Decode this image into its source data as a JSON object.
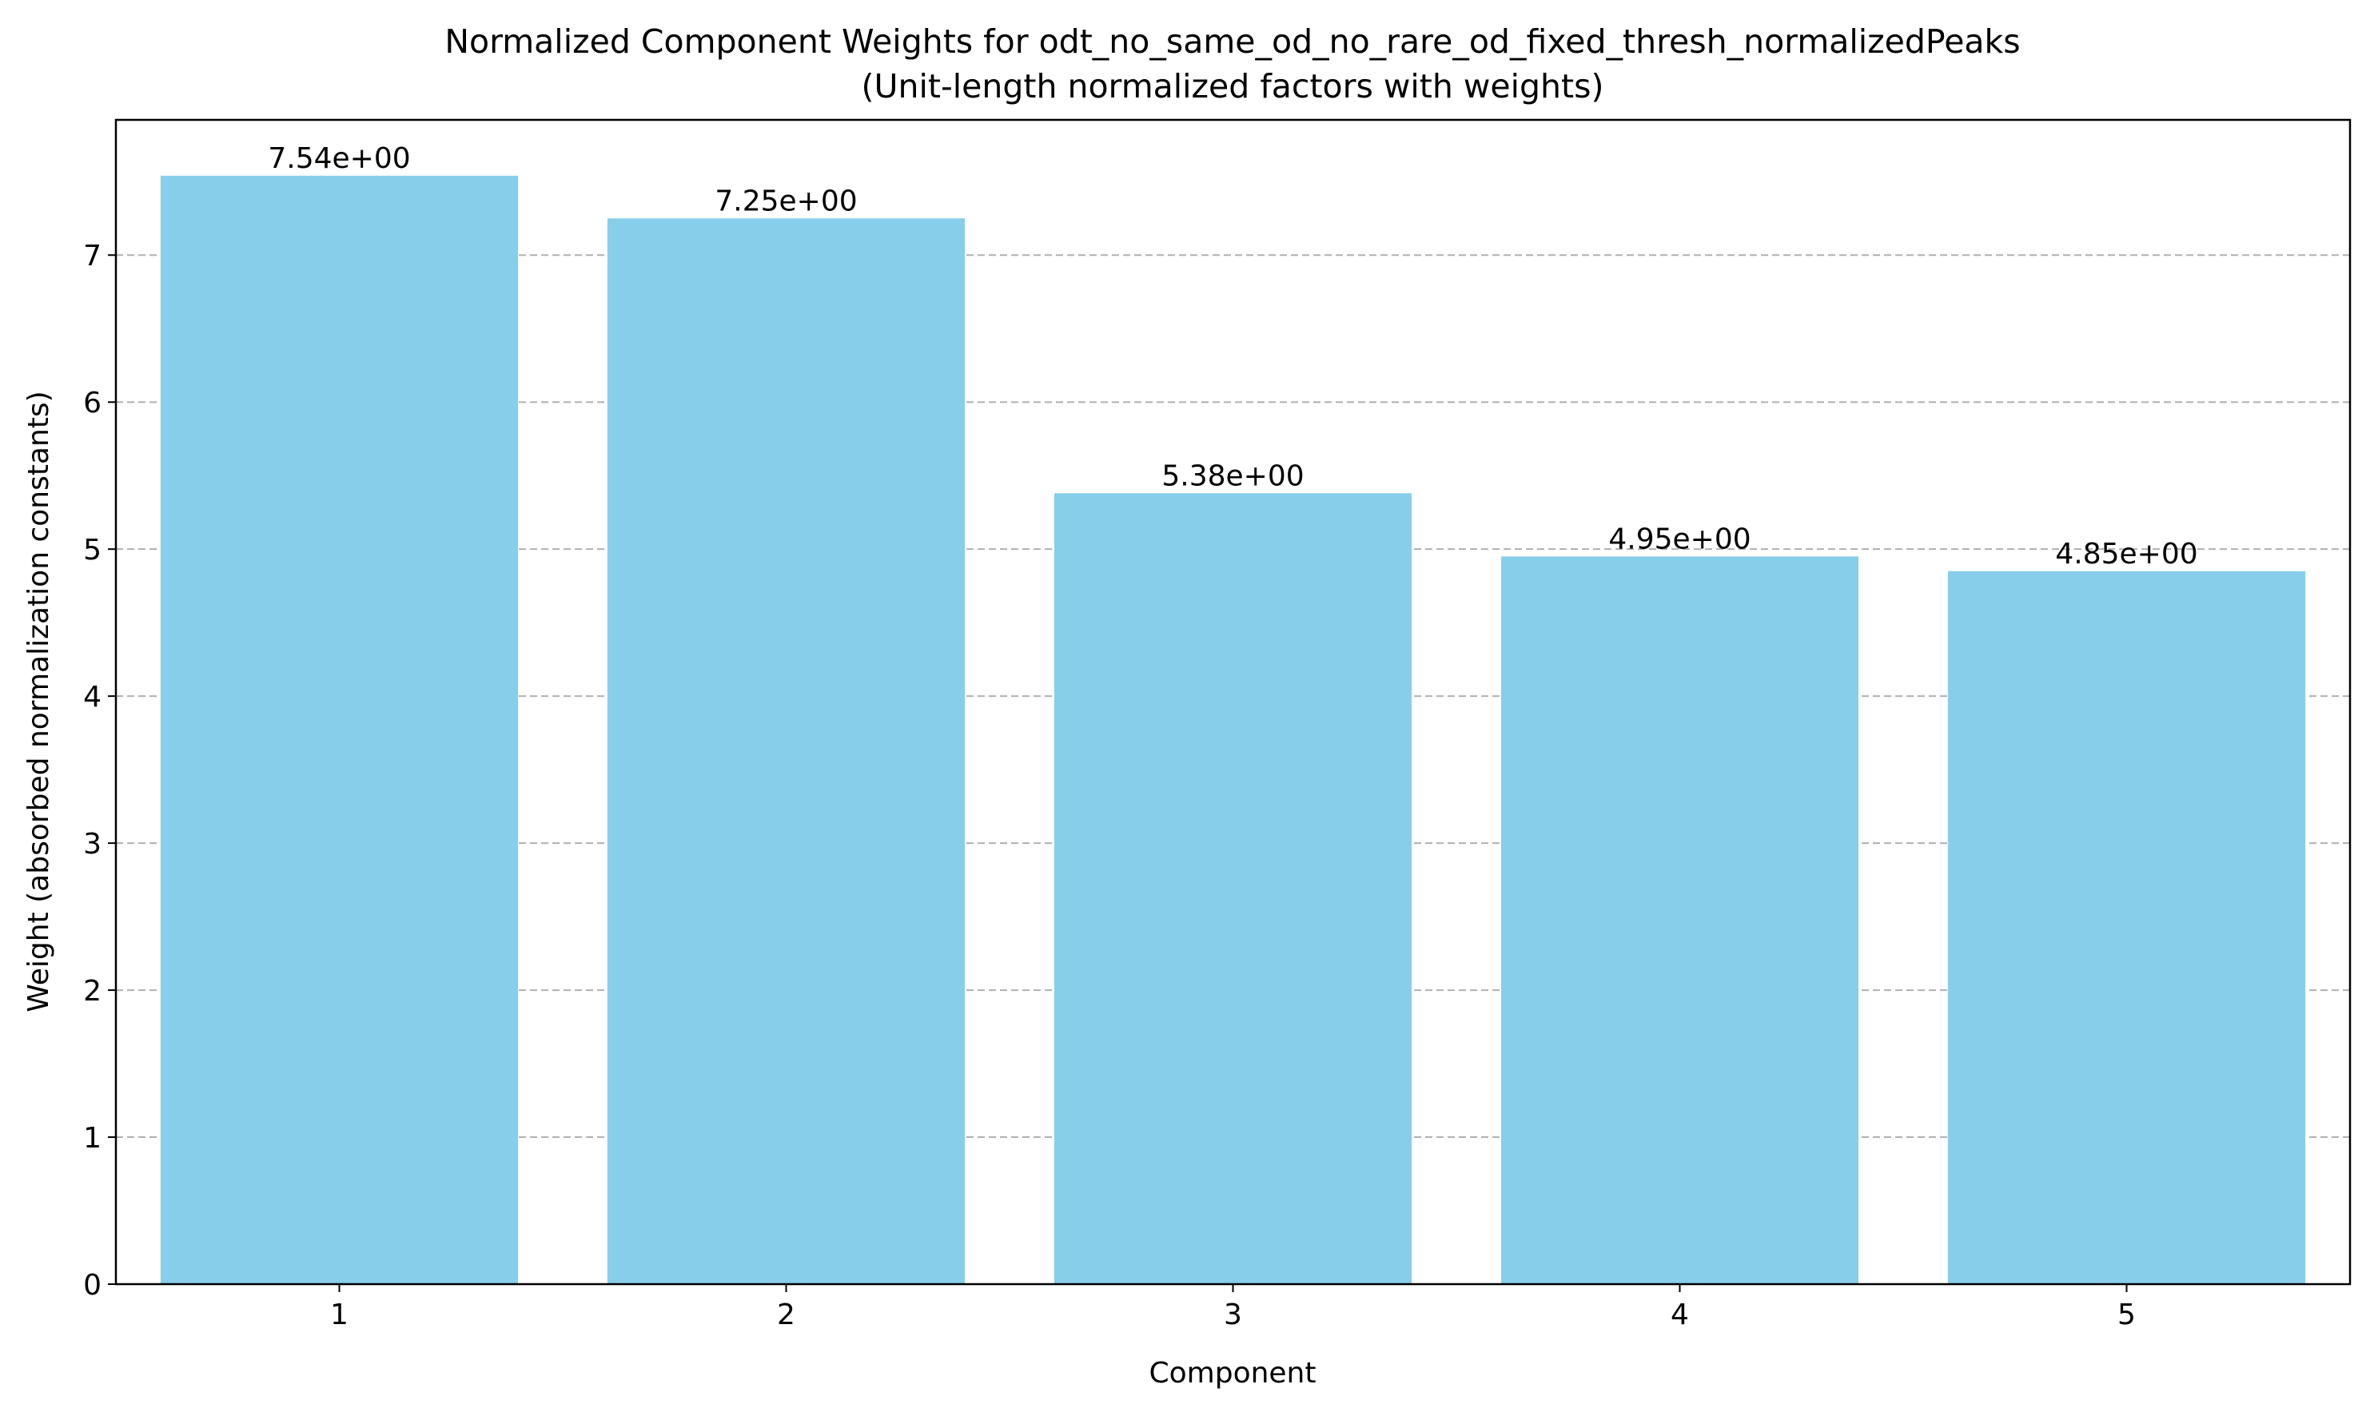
{
  "chart_data": {
    "type": "bar",
    "title": "Normalized Component Weights for odt_no_same_od_no_rare_od_fixed_thresh_normalizedPeaks",
    "subtitle": "(Unit-length normalized factors with weights)",
    "xlabel": "Component",
    "ylabel": "Weight (absorbed normalization constants)",
    "categories": [
      "1",
      "2",
      "3",
      "4",
      "5"
    ],
    "values": [
      7.54,
      7.25,
      5.38,
      4.95,
      4.85
    ],
    "value_labels": [
      "7.54e+00",
      "7.25e+00",
      "5.38e+00",
      "4.95e+00",
      "4.85e+00"
    ],
    "ylim": [
      0,
      7.92
    ],
    "yticks": [
      0,
      1,
      2,
      3,
      4,
      5,
      6,
      7
    ],
    "grid": "y-dashed",
    "bar_color": "#87CEEB",
    "grid_color": "#b0b0b0"
  }
}
